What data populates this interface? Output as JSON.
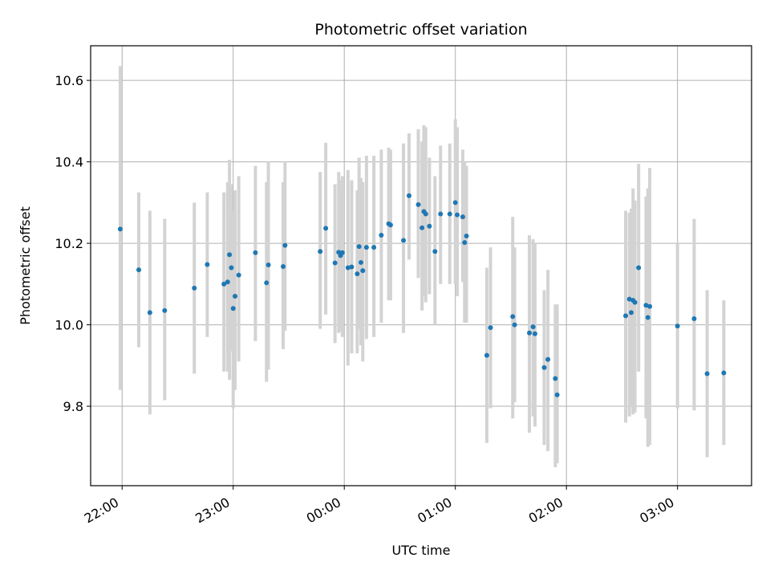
{
  "chart_data": {
    "type": "scatter",
    "title": "Photometric offset variation",
    "xlabel": "UTC time",
    "ylabel": "Photometric offset",
    "x_ticks": [
      "22:00",
      "23:00",
      "00:00",
      "01:00",
      "02:00",
      "03:00"
    ],
    "y_ticks": [
      "9.8",
      "10.0",
      "10.2",
      "10.4",
      "10.6"
    ],
    "xlim": [
      "21:43",
      "03:40"
    ],
    "ylim": [
      9.605,
      10.685
    ],
    "grid": true,
    "marker_color": "#1f77b4",
    "errorbar_color": "#d3d3d3",
    "points": [
      {
        "t": "21:59",
        "y": 10.235,
        "lo": 9.84,
        "hi": 10.635
      },
      {
        "t": "22:09",
        "y": 10.135,
        "lo": 9.945,
        "hi": 10.325
      },
      {
        "t": "22:15",
        "y": 10.03,
        "lo": 9.78,
        "hi": 10.28
      },
      {
        "t": "22:23",
        "y": 10.035,
        "lo": 9.815,
        "hi": 10.26
      },
      {
        "t": "22:39",
        "y": 10.09,
        "lo": 9.88,
        "hi": 10.3
      },
      {
        "t": "22:46",
        "y": 10.148,
        "lo": 9.97,
        "hi": 10.325
      },
      {
        "t": "22:55",
        "y": 10.1,
        "lo": 9.885,
        "hi": 10.325
      },
      {
        "t": "22:57",
        "y": 10.105,
        "lo": 9.885,
        "hi": 10.35
      },
      {
        "t": "22:58",
        "y": 10.172,
        "lo": 9.865,
        "hi": 10.405
      },
      {
        "t": "22:59",
        "y": 10.14,
        "lo": 9.935,
        "hi": 10.345
      },
      {
        "t": "23:00",
        "y": 10.04,
        "lo": 9.795,
        "hi": 10.28
      },
      {
        "t": "23:01",
        "y": 10.07,
        "lo": 9.84,
        "hi": 10.33
      },
      {
        "t": "23:03",
        "y": 10.122,
        "lo": 9.91,
        "hi": 10.365
      },
      {
        "t": "23:12",
        "y": 10.177,
        "lo": 9.96,
        "hi": 10.39
      },
      {
        "t": "23:18",
        "y": 10.103,
        "lo": 9.86,
        "hi": 10.35
      },
      {
        "t": "23:19",
        "y": 10.147,
        "lo": 9.89,
        "hi": 10.4
      },
      {
        "t": "23:27",
        "y": 10.143,
        "lo": 9.94,
        "hi": 10.35
      },
      {
        "t": "23:28",
        "y": 10.195,
        "lo": 9.985,
        "hi": 10.4
      },
      {
        "t": "23:47",
        "y": 10.18,
        "lo": 9.99,
        "hi": 10.375
      },
      {
        "t": "23:50",
        "y": 10.237,
        "lo": 10.025,
        "hi": 10.447
      },
      {
        "t": "23:55",
        "y": 10.152,
        "lo": 9.955,
        "hi": 10.345
      },
      {
        "t": "23:57",
        "y": 10.178,
        "lo": 9.98,
        "hi": 10.375
      },
      {
        "t": "23:58",
        "y": 10.17,
        "lo": 9.985,
        "hi": 10.355
      },
      {
        "t": "23:59",
        "y": 10.177,
        "lo": 9.97,
        "hi": 10.365
      },
      {
        "t": "00:02",
        "y": 10.14,
        "lo": 9.9,
        "hi": 10.38
      },
      {
        "t": "00:04",
        "y": 10.142,
        "lo": 9.93,
        "hi": 10.355
      },
      {
        "t": "00:07",
        "y": 10.125,
        "lo": 9.93,
        "hi": 10.33
      },
      {
        "t": "00:08",
        "y": 10.192,
        "lo": 9.99,
        "hi": 10.41
      },
      {
        "t": "00:09",
        "y": 10.153,
        "lo": 9.95,
        "hi": 10.36
      },
      {
        "t": "00:10",
        "y": 10.133,
        "lo": 9.91,
        "hi": 10.35
      },
      {
        "t": "00:12",
        "y": 10.19,
        "lo": 9.965,
        "hi": 10.415
      },
      {
        "t": "00:16",
        "y": 10.19,
        "lo": 9.97,
        "hi": 10.415
      },
      {
        "t": "00:20",
        "y": 10.22,
        "lo": 10.005,
        "hi": 10.43
      },
      {
        "t": "00:24",
        "y": 10.248,
        "lo": 10.06,
        "hi": 10.435
      },
      {
        "t": "00:25",
        "y": 10.245,
        "lo": 10.06,
        "hi": 10.43
      },
      {
        "t": "00:32",
        "y": 10.207,
        "lo": 9.98,
        "hi": 10.445
      },
      {
        "t": "00:35",
        "y": 10.317,
        "lo": 10.16,
        "hi": 10.47
      },
      {
        "t": "00:40",
        "y": 10.295,
        "lo": 10.115,
        "hi": 10.48
      },
      {
        "t": "00:42",
        "y": 10.238,
        "lo": 10.035,
        "hi": 10.45
      },
      {
        "t": "00:43",
        "y": 10.278,
        "lo": 10.07,
        "hi": 10.49
      },
      {
        "t": "00:44",
        "y": 10.272,
        "lo": 10.055,
        "hi": 10.485
      },
      {
        "t": "00:46",
        "y": 10.242,
        "lo": 10.075,
        "hi": 10.41
      },
      {
        "t": "00:49",
        "y": 10.18,
        "lo": 10.0,
        "hi": 10.365
      },
      {
        "t": "00:52",
        "y": 10.272,
        "lo": 10.1,
        "hi": 10.44
      },
      {
        "t": "00:57",
        "y": 10.272,
        "lo": 10.1,
        "hi": 10.445
      },
      {
        "t": "01:00",
        "y": 10.3,
        "lo": 10.1,
        "hi": 10.505
      },
      {
        "t": "01:01",
        "y": 10.27,
        "lo": 10.07,
        "hi": 10.485
      },
      {
        "t": "01:04",
        "y": 10.265,
        "lo": 10.105,
        "hi": 10.43
      },
      {
        "t": "01:05",
        "y": 10.202,
        "lo": 10.005,
        "hi": 10.4
      },
      {
        "t": "01:06",
        "y": 10.218,
        "lo": 10.005,
        "hi": 10.39
      },
      {
        "t": "01:17",
        "y": 9.925,
        "lo": 9.71,
        "hi": 10.14
      },
      {
        "t": "01:19",
        "y": 9.993,
        "lo": 9.795,
        "hi": 10.19
      },
      {
        "t": "01:31",
        "y": 10.02,
        "lo": 9.77,
        "hi": 10.265
      },
      {
        "t": "01:32",
        "y": 10.0,
        "lo": 9.81,
        "hi": 10.19
      },
      {
        "t": "01:40",
        "y": 9.98,
        "lo": 9.735,
        "hi": 10.22
      },
      {
        "t": "01:42",
        "y": 9.995,
        "lo": 9.775,
        "hi": 10.21
      },
      {
        "t": "01:43",
        "y": 9.978,
        "lo": 9.75,
        "hi": 10.2
      },
      {
        "t": "01:48",
        "y": 9.895,
        "lo": 9.705,
        "hi": 10.085
      },
      {
        "t": "01:50",
        "y": 9.915,
        "lo": 9.69,
        "hi": 10.135
      },
      {
        "t": "01:54",
        "y": 9.868,
        "lo": 9.65,
        "hi": 10.05
      },
      {
        "t": "01:55",
        "y": 9.828,
        "lo": 9.66,
        "hi": 10.05
      },
      {
        "t": "02:32",
        "y": 10.022,
        "lo": 9.76,
        "hi": 10.28
      },
      {
        "t": "02:34",
        "y": 10.063,
        "lo": 9.775,
        "hi": 10.275
      },
      {
        "t": "02:35",
        "y": 10.03,
        "lo": 9.8,
        "hi": 10.285
      },
      {
        "t": "02:36",
        "y": 10.06,
        "lo": 9.78,
        "hi": 10.335
      },
      {
        "t": "02:37",
        "y": 10.055,
        "lo": 9.785,
        "hi": 10.305
      },
      {
        "t": "02:39",
        "y": 10.14,
        "lo": 9.885,
        "hi": 10.395
      },
      {
        "t": "02:43",
        "y": 10.048,
        "lo": 9.77,
        "hi": 10.315
      },
      {
        "t": "02:44",
        "y": 10.018,
        "lo": 9.7,
        "hi": 10.335
      },
      {
        "t": "02:45",
        "y": 10.045,
        "lo": 9.705,
        "hi": 10.385
      },
      {
        "t": "03:00",
        "y": 9.997,
        "lo": 9.795,
        "hi": 10.2
      },
      {
        "t": "03:09",
        "y": 10.015,
        "lo": 9.79,
        "hi": 10.26
      },
      {
        "t": "03:16",
        "y": 9.88,
        "lo": 9.675,
        "hi": 10.085
      },
      {
        "t": "03:25",
        "y": 9.882,
        "lo": 9.705,
        "hi": 10.06
      }
    ]
  }
}
